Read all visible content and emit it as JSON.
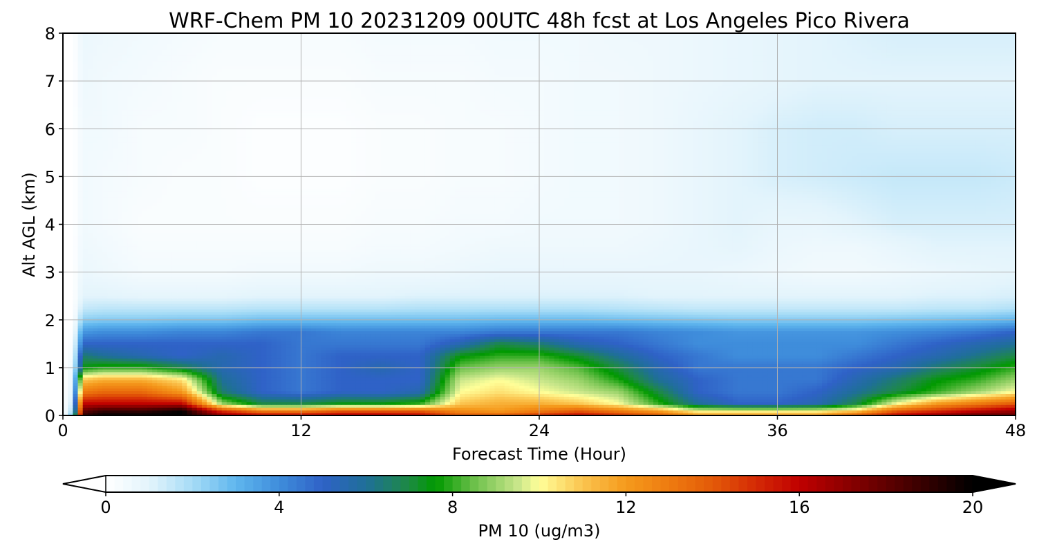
{
  "chart_data": {
    "type": "heatmap",
    "title": "WRF-Chem PM 10  20231209 00UTC 48h fcst at Los Angeles Pico Rivera",
    "xlabel": "Forecast Time (Hour)",
    "ylabel": "Alt AGL (km)",
    "xlim": [
      0,
      48
    ],
    "ylim": [
      0,
      8
    ],
    "xticks": [
      0,
      12,
      24,
      36,
      48
    ],
    "yticks": [
      0,
      1,
      2,
      3,
      4,
      5,
      6,
      7,
      8
    ],
    "grid": true,
    "colorbar": {
      "label": "PM 10  (ug/m3)",
      "min": 0,
      "max": 20,
      "ticks": [
        0,
        4,
        8,
        12,
        16,
        20
      ],
      "extend": "both",
      "orientation": "horizontal",
      "stops": [
        {
          "value": 0,
          "color": "#ffffff"
        },
        {
          "value": 1,
          "color": "#e3f4fc"
        },
        {
          "value": 2,
          "color": "#a6dcf6"
        },
        {
          "value": 3,
          "color": "#5fb6ee"
        },
        {
          "value": 4,
          "color": "#3f8ddb"
        },
        {
          "value": 5,
          "color": "#2f62c7"
        },
        {
          "value": 6,
          "color": "#1f6f98"
        },
        {
          "value": 7,
          "color": "#1d8a43"
        },
        {
          "value": 7.6,
          "color": "#009900"
        },
        {
          "value": 8.5,
          "color": "#6cc04a"
        },
        {
          "value": 9.5,
          "color": "#c8e68a"
        },
        {
          "value": 10,
          "color": "#ffff99"
        },
        {
          "value": 11,
          "color": "#fbc44f"
        },
        {
          "value": 12,
          "color": "#f59a1c"
        },
        {
          "value": 13,
          "color": "#ee7b10"
        },
        {
          "value": 14,
          "color": "#e35a08"
        },
        {
          "value": 15,
          "color": "#d42a05"
        },
        {
          "value": 16,
          "color": "#c00000"
        },
        {
          "value": 17,
          "color": "#900000"
        },
        {
          "value": 18,
          "color": "#600000"
        },
        {
          "value": 19,
          "color": "#300000"
        },
        {
          "value": 20,
          "color": "#000000"
        }
      ]
    },
    "times": [
      0,
      0.5,
      1,
      2,
      4,
      6,
      8,
      10,
      12,
      14,
      16,
      18,
      20,
      22,
      24,
      26,
      28,
      30,
      32,
      34,
      36,
      38,
      40,
      42,
      44,
      46,
      48
    ],
    "altitudes": [
      0,
      0.1,
      0.25,
      0.5,
      0.75,
      1,
      1.25,
      1.5,
      1.75,
      2,
      2.25,
      2.5,
      3,
      3.5,
      4,
      5,
      6,
      7,
      8
    ],
    "values": [
      [
        0,
        3,
        19,
        20,
        20,
        20,
        17,
        16,
        16,
        16.5,
        16.5,
        16,
        14,
        14,
        15,
        16,
        15,
        14,
        12,
        12,
        12,
        12,
        14,
        16,
        17,
        18,
        18
      ],
      [
        0,
        2,
        18,
        19,
        19,
        20,
        15,
        13,
        13,
        14,
        14,
        14,
        12.5,
        12,
        13,
        14,
        13,
        12,
        10,
        10,
        10,
        10,
        11,
        14,
        15,
        16,
        17
      ],
      [
        0,
        1.5,
        16,
        16,
        16,
        16,
        9,
        7,
        7,
        7.5,
        7.5,
        8,
        11,
        11.5,
        11.5,
        11,
        10,
        8,
        6,
        5,
        5,
        5.5,
        7,
        10,
        12,
        13,
        14
      ],
      [
        0,
        1,
        13,
        13.5,
        13.5,
        12,
        6.5,
        5,
        4.5,
        5,
        5,
        5.5,
        10,
        10.5,
        10,
        9.5,
        9,
        7,
        5,
        4.5,
        4.5,
        5,
        6,
        7,
        8,
        9,
        10
      ],
      [
        0,
        0.8,
        11,
        11.5,
        11.5,
        10.5,
        6,
        5,
        4.5,
        5,
        5,
        5,
        9.5,
        10,
        9.5,
        9,
        7.8,
        6,
        5,
        4.5,
        4.5,
        4.5,
        5.5,
        6.5,
        7.5,
        8,
        9
      ],
      [
        0,
        0.6,
        7.5,
        8,
        8,
        7,
        5.5,
        5,
        4.5,
        5,
        5.5,
        5,
        8.5,
        9,
        9,
        8.3,
        7,
        5.5,
        4.5,
        4.5,
        4.5,
        4.5,
        5,
        5.5,
        6.5,
        7.2,
        8
      ],
      [
        0,
        0.4,
        6.5,
        6,
        5.5,
        5,
        5.5,
        5,
        4.5,
        5,
        5,
        5,
        7.5,
        8,
        8,
        7.2,
        6,
        5,
        4.5,
        4,
        4,
        4,
        4.5,
        5,
        5.5,
        6.2,
        7
      ],
      [
        0,
        0.2,
        5,
        5,
        5,
        5,
        5,
        5,
        4.5,
        4.5,
        4.5,
        4.5,
        5.5,
        7,
        6.5,
        5.5,
        5,
        4.5,
        4,
        4,
        4,
        4,
        4,
        4.5,
        5,
        5.5,
        6
      ],
      [
        0,
        0.1,
        3.8,
        4,
        4,
        4.2,
        4.2,
        4.5,
        4.5,
        4.2,
        4.2,
        4.2,
        4.2,
        4.5,
        4.5,
        4.5,
        4.5,
        4.2,
        4,
        3.8,
        3.8,
        3.8,
        3.8,
        4,
        4.2,
        4.5,
        5
      ],
      [
        0,
        0,
        2.4,
        2.5,
        2.5,
        2.6,
        2.6,
        2.8,
        2.8,
        2.8,
        2.8,
        2.8,
        2.8,
        2.9,
        2.9,
        2.9,
        2.8,
        2.7,
        2.6,
        2.5,
        2.5,
        2.5,
        2.5,
        2.6,
        2.7,
        2.8,
        3
      ],
      [
        0,
        0,
        1.5,
        1.6,
        1.6,
        1.6,
        1.6,
        1.7,
        1.7,
        1.7,
        1.7,
        1.8,
        1.8,
        1.8,
        1.8,
        1.8,
        1.7,
        1.6,
        1.5,
        1.5,
        1.5,
        1.5,
        1.5,
        1.5,
        1.6,
        1.6,
        1.8
      ],
      [
        0,
        0,
        1,
        1,
        0.9,
        0.9,
        0.9,
        1,
        1,
        1,
        1,
        1.1,
        1.1,
        1.1,
        1.1,
        1.1,
        1.1,
        1,
        1,
        1,
        1,
        1,
        1,
        1,
        1.1,
        1.1,
        1.2
      ],
      [
        0,
        0,
        0.7,
        0.6,
        0.4,
        0.4,
        0.4,
        0.5,
        0.5,
        0.5,
        0.6,
        0.6,
        0.7,
        0.8,
        0.8,
        0.8,
        0.8,
        0.8,
        0.8,
        0.7,
        0.6,
        0.5,
        0.5,
        0.6,
        0.7,
        0.8,
        0.9
      ],
      [
        0,
        0,
        0.6,
        0.5,
        0.3,
        0.3,
        0.3,
        0.3,
        0.3,
        0.3,
        0.4,
        0.4,
        0.5,
        0.6,
        0.6,
        0.6,
        0.6,
        0.7,
        0.8,
        0.9,
        0.7,
        0.6,
        0.6,
        0.8,
        1,
        1,
        1
      ],
      [
        0,
        0,
        0.5,
        0.4,
        0.2,
        0.2,
        0.2,
        0.2,
        0.2,
        0.2,
        0.3,
        0.3,
        0.4,
        0.4,
        0.5,
        0.5,
        0.5,
        0.6,
        0.8,
        1,
        0.8,
        0.8,
        1,
        1.2,
        1.2,
        1.2,
        1.2
      ],
      [
        0,
        0,
        0.5,
        0.4,
        0.3,
        0.2,
        0.2,
        0.1,
        0.1,
        0.1,
        0.2,
        0.2,
        0.3,
        0.3,
        0.4,
        0.5,
        0.5,
        0.6,
        0.8,
        1,
        1.2,
        1.3,
        1.4,
        1.5,
        1.5,
        1.5,
        1.4
      ],
      [
        0,
        0,
        0.5,
        0.5,
        0.3,
        0.3,
        0.2,
        0.1,
        0.1,
        0.1,
        0.2,
        0.2,
        0.3,
        0.3,
        0.4,
        0.5,
        0.5,
        0.6,
        0.8,
        1,
        1.2,
        1.3,
        1.3,
        1.2,
        1.2,
        1.2,
        1.2
      ],
      [
        0,
        0,
        0.6,
        0.5,
        0.4,
        0.3,
        0.2,
        0.2,
        0.2,
        0.2,
        0.3,
        0.3,
        0.3,
        0.4,
        0.4,
        0.5,
        0.5,
        0.6,
        0.7,
        0.8,
        0.9,
        1,
        1,
        1,
        1,
        1,
        1
      ],
      [
        0,
        0,
        0.7,
        0.6,
        0.5,
        0.4,
        0.3,
        0.3,
        0.3,
        0.3,
        0.4,
        0.4,
        0.4,
        0.5,
        0.5,
        0.5,
        0.6,
        0.6,
        0.7,
        0.8,
        0.9,
        1,
        1.1,
        1.2,
        1.2,
        1.2,
        1.2
      ]
    ]
  }
}
